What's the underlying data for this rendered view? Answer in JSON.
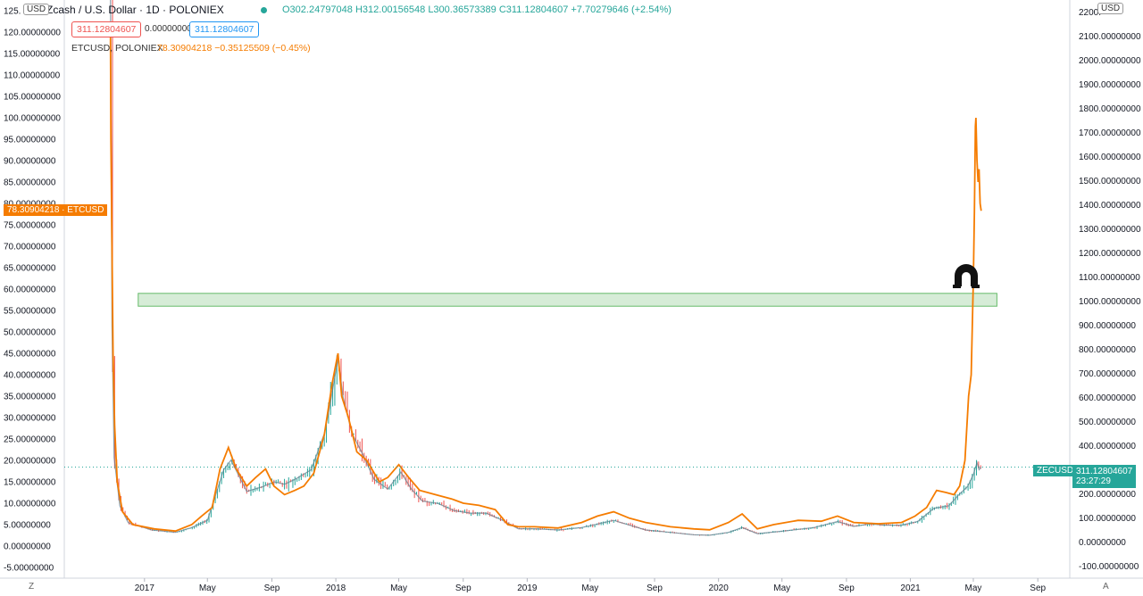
{
  "header": {
    "symbol_title": "Zcash / U.S. Dollar · 1D · POLONIEX",
    "ohlc": "O302.24797048 H312.00156548 L300.36573389 C311.12804607 +7.70279646 (+2.54%)",
    "sell_price": "311.12804607",
    "spread": "0.00000000",
    "buy_price": "311.12804607",
    "compare_symbol": "ETCUSD, POLONIEX",
    "compare_values": "78.30904218 −0.35125509 (−0.45%)",
    "left_currency": "USD",
    "right_currency": "USD",
    "bottom_left_btn": "Z",
    "bottom_right_btn": "A"
  },
  "price_tags": {
    "etc_value": "78.30904218",
    "etc_symbol": "ETCUSD",
    "zec_symbol": "ZECUSD",
    "zec_value": "311.12804607",
    "countdown": "23:27:29"
  },
  "colors": {
    "zec_up": "#26a69a",
    "zec_down": "#ef5350",
    "etc_line": "#f57c00",
    "zone_fill": "#c8e6c9",
    "zone_stroke": "#66bb6a",
    "zec_tag": "#26a69a",
    "etc_tag": "#f57c00"
  },
  "icons": [
    "horseshoe-icon"
  ],
  "chart_data": {
    "type": "line",
    "x_axis_labels": [
      "2017",
      "May",
      "Sep",
      "2018",
      "May",
      "Sep",
      "2019",
      "May",
      "Sep",
      "2020",
      "May",
      "Sep",
      "2021",
      "May",
      "Sep"
    ],
    "x_tick_dates": [
      "2017-01-01",
      "2017-05-01",
      "2017-09-01",
      "2018-01-01",
      "2018-05-01",
      "2018-09-01",
      "2019-01-01",
      "2019-05-01",
      "2019-09-01",
      "2020-01-01",
      "2020-05-01",
      "2020-09-01",
      "2021-01-01",
      "2021-05-01",
      "2021-09-01"
    ],
    "left_axis": {
      "ylim": [
        -7.5,
        127.5
      ],
      "tick_values": [
        125,
        120,
        115,
        110,
        105,
        100,
        95,
        90,
        85,
        80,
        75,
        70,
        65,
        60,
        55,
        50,
        45,
        40,
        35,
        30,
        25,
        20,
        15,
        10,
        5,
        0,
        -5
      ],
      "tick_labels": [
        "125.",
        "120.00000000",
        "115.00000000",
        "110.00000000",
        "105.00000000",
        "100.00000000",
        "95.00000000",
        "90.00000000",
        "85.00000000",
        "80.00000000",
        "75.00000000",
        "70.00000000",
        "65.00000000",
        "60.00000000",
        "55.00000000",
        "50.00000000",
        "45.00000000",
        "40.00000000",
        "35.00000000",
        "30.00000000",
        "25.00000000",
        "20.00000000",
        "15.00000000",
        "10.00000000",
        "5.00000000",
        "0.00000000",
        "-5.00000000"
      ]
    },
    "right_axis": {
      "ylim": [
        -150,
        2250
      ],
      "tick_values": [
        2200,
        2100,
        2000,
        1900,
        1800,
        1700,
        1600,
        1500,
        1400,
        1300,
        1200,
        1100,
        1000,
        900,
        800,
        700,
        600,
        500,
        400,
        300,
        200,
        100,
        0,
        -100
      ],
      "tick_labels": [
        "2200.",
        "2100.00000000",
        "2000.00000000",
        "1900.00000000",
        "1800.00000000",
        "1700.00000000",
        "1600.00000000",
        "1500.00000000",
        "1400.00000000",
        "1300.00000000",
        "1200.00000000",
        "1100.00000000",
        "1000.00000000",
        "900.00000000",
        "800.00000000",
        "700.00000000",
        "600.00000000",
        "500.00000000",
        "400.00000000",
        "300.00000000",
        "200.00000000",
        "100.00000000",
        "0.00000000",
        "-100.00000000"
      ]
    },
    "series": [
      {
        "name": "ETCUSD",
        "axis": "left",
        "points": [
          [
            "2016-10-28",
            120
          ],
          [
            "2016-10-29",
            95
          ],
          [
            "2016-10-31",
            70
          ],
          [
            "2016-11-02",
            45
          ],
          [
            "2016-11-05",
            28
          ],
          [
            "2016-11-10",
            15
          ],
          [
            "2016-11-20",
            8
          ],
          [
            "2016-12-10",
            5
          ],
          [
            "2017-01-20",
            4
          ],
          [
            "2017-03-01",
            3.5
          ],
          [
            "2017-04-01",
            5
          ],
          [
            "2017-04-20",
            7
          ],
          [
            "2017-05-10",
            9
          ],
          [
            "2017-05-25",
            18
          ],
          [
            "2017-06-10",
            23
          ],
          [
            "2017-06-25",
            18
          ],
          [
            "2017-07-15",
            14
          ],
          [
            "2017-08-01",
            16
          ],
          [
            "2017-08-20",
            18
          ],
          [
            "2017-09-05",
            14
          ],
          [
            "2017-09-25",
            12
          ],
          [
            "2017-10-15",
            13
          ],
          [
            "2017-11-01",
            14
          ],
          [
            "2017-11-20",
            17
          ],
          [
            "2017-12-10",
            26
          ],
          [
            "2017-12-25",
            38
          ],
          [
            "2018-01-05",
            45
          ],
          [
            "2018-01-12",
            35
          ],
          [
            "2018-01-25",
            30
          ],
          [
            "2018-02-10",
            22
          ],
          [
            "2018-03-01",
            20
          ],
          [
            "2018-03-25",
            15
          ],
          [
            "2018-04-10",
            16
          ],
          [
            "2018-05-01",
            19
          ],
          [
            "2018-05-20",
            16
          ],
          [
            "2018-06-10",
            13
          ],
          [
            "2018-07-10",
            12
          ],
          [
            "2018-08-10",
            11
          ],
          [
            "2018-09-01",
            10
          ],
          [
            "2018-10-01",
            9.5
          ],
          [
            "2018-11-01",
            8.5
          ],
          [
            "2018-11-25",
            5
          ],
          [
            "2018-12-15",
            4.5
          ],
          [
            "2019-01-15",
            4.5
          ],
          [
            "2019-03-01",
            4.2
          ],
          [
            "2019-04-15",
            5.5
          ],
          [
            "2019-05-15",
            7
          ],
          [
            "2019-06-15",
            8
          ],
          [
            "2019-07-15",
            6.5
          ],
          [
            "2019-08-15",
            5.5
          ],
          [
            "2019-10-01",
            4.5
          ],
          [
            "2019-11-15",
            4
          ],
          [
            "2019-12-15",
            3.8
          ],
          [
            "2020-01-20",
            5.5
          ],
          [
            "2020-02-15",
            7.5
          ],
          [
            "2020-03-15",
            4
          ],
          [
            "2020-04-15",
            5
          ],
          [
            "2020-06-01",
            6
          ],
          [
            "2020-07-15",
            5.8
          ],
          [
            "2020-08-15",
            7
          ],
          [
            "2020-09-15",
            5.5
          ],
          [
            "2020-11-01",
            5.2
          ],
          [
            "2020-12-15",
            5.5
          ],
          [
            "2021-01-10",
            7
          ],
          [
            "2021-02-01",
            9
          ],
          [
            "2021-02-20",
            13
          ],
          [
            "2021-03-10",
            12.5
          ],
          [
            "2021-03-25",
            12
          ],
          [
            "2021-04-05",
            14
          ],
          [
            "2021-04-15",
            20
          ],
          [
            "2021-04-22",
            35
          ],
          [
            "2021-04-27",
            40
          ],
          [
            "2021-05-01",
            62
          ],
          [
            "2021-05-03",
            78
          ],
          [
            "2021-05-05",
            98
          ],
          [
            "2021-05-06",
            100
          ],
          [
            "2021-05-08",
            90
          ],
          [
            "2021-05-10",
            85
          ],
          [
            "2021-05-12",
            88
          ],
          [
            "2021-05-14",
            80
          ],
          [
            "2021-05-16",
            78.3
          ]
        ]
      },
      {
        "name": "ZECUSD",
        "axis": "right",
        "points": [
          [
            "2016-10-28",
            4500
          ],
          [
            "2016-10-29",
            2000
          ],
          [
            "2016-10-31",
            900
          ],
          [
            "2016-11-04",
            350
          ],
          [
            "2016-11-15",
            150
          ],
          [
            "2016-12-01",
            80
          ],
          [
            "2017-01-15",
            50
          ],
          [
            "2017-03-01",
            40
          ],
          [
            "2017-04-01",
            60
          ],
          [
            "2017-05-01",
            90
          ],
          [
            "2017-06-01",
            300
          ],
          [
            "2017-06-15",
            340
          ],
          [
            "2017-07-15",
            210
          ],
          [
            "2017-08-15",
            230
          ],
          [
            "2017-09-05",
            250
          ],
          [
            "2017-09-25",
            240
          ],
          [
            "2017-10-15",
            260
          ],
          [
            "2017-11-15",
            300
          ],
          [
            "2017-12-10",
            450
          ],
          [
            "2017-12-20",
            560
          ],
          [
            "2018-01-05",
            760
          ],
          [
            "2018-01-15",
            600
          ],
          [
            "2018-02-01",
            450
          ],
          [
            "2018-02-20",
            370
          ],
          [
            "2018-03-15",
            260
          ],
          [
            "2018-04-10",
            220
          ],
          [
            "2018-05-05",
            290
          ],
          [
            "2018-05-25",
            220
          ],
          [
            "2018-06-15",
            170
          ],
          [
            "2018-07-15",
            160
          ],
          [
            "2018-08-15",
            130
          ],
          [
            "2018-09-15",
            120
          ],
          [
            "2018-10-15",
            120
          ],
          [
            "2018-11-15",
            90
          ],
          [
            "2018-12-15",
            55
          ],
          [
            "2019-01-15",
            55
          ],
          [
            "2019-03-01",
            50
          ],
          [
            "2019-04-15",
            60
          ],
          [
            "2019-05-15",
            75
          ],
          [
            "2019-06-15",
            90
          ],
          [
            "2019-07-15",
            70
          ],
          [
            "2019-08-15",
            50
          ],
          [
            "2019-10-01",
            40
          ],
          [
            "2019-11-15",
            30
          ],
          [
            "2019-12-15",
            28
          ],
          [
            "2020-01-20",
            40
          ],
          [
            "2020-02-15",
            60
          ],
          [
            "2020-03-15",
            35
          ],
          [
            "2020-05-01",
            45
          ],
          [
            "2020-07-01",
            60
          ],
          [
            "2020-08-15",
            85
          ],
          [
            "2020-09-15",
            65
          ],
          [
            "2020-10-15",
            75
          ],
          [
            "2020-11-15",
            70
          ],
          [
            "2020-12-15",
            70
          ],
          [
            "2021-01-15",
            85
          ],
          [
            "2021-02-15",
            140
          ],
          [
            "2021-03-15",
            150
          ],
          [
            "2021-04-05",
            200
          ],
          [
            "2021-04-20",
            230
          ],
          [
            "2021-05-01",
            280
          ],
          [
            "2021-05-08",
            330
          ],
          [
            "2021-05-12",
            300
          ],
          [
            "2021-05-16",
            311.128
          ]
        ]
      }
    ],
    "zone": {
      "axis": "left",
      "y_min": 56,
      "y_max": 59,
      "x_start": "2016-12-20",
      "x_end": "2021-06-15"
    },
    "last_price_line": {
      "axis": "right",
      "value": 311.128
    },
    "grid": false
  }
}
